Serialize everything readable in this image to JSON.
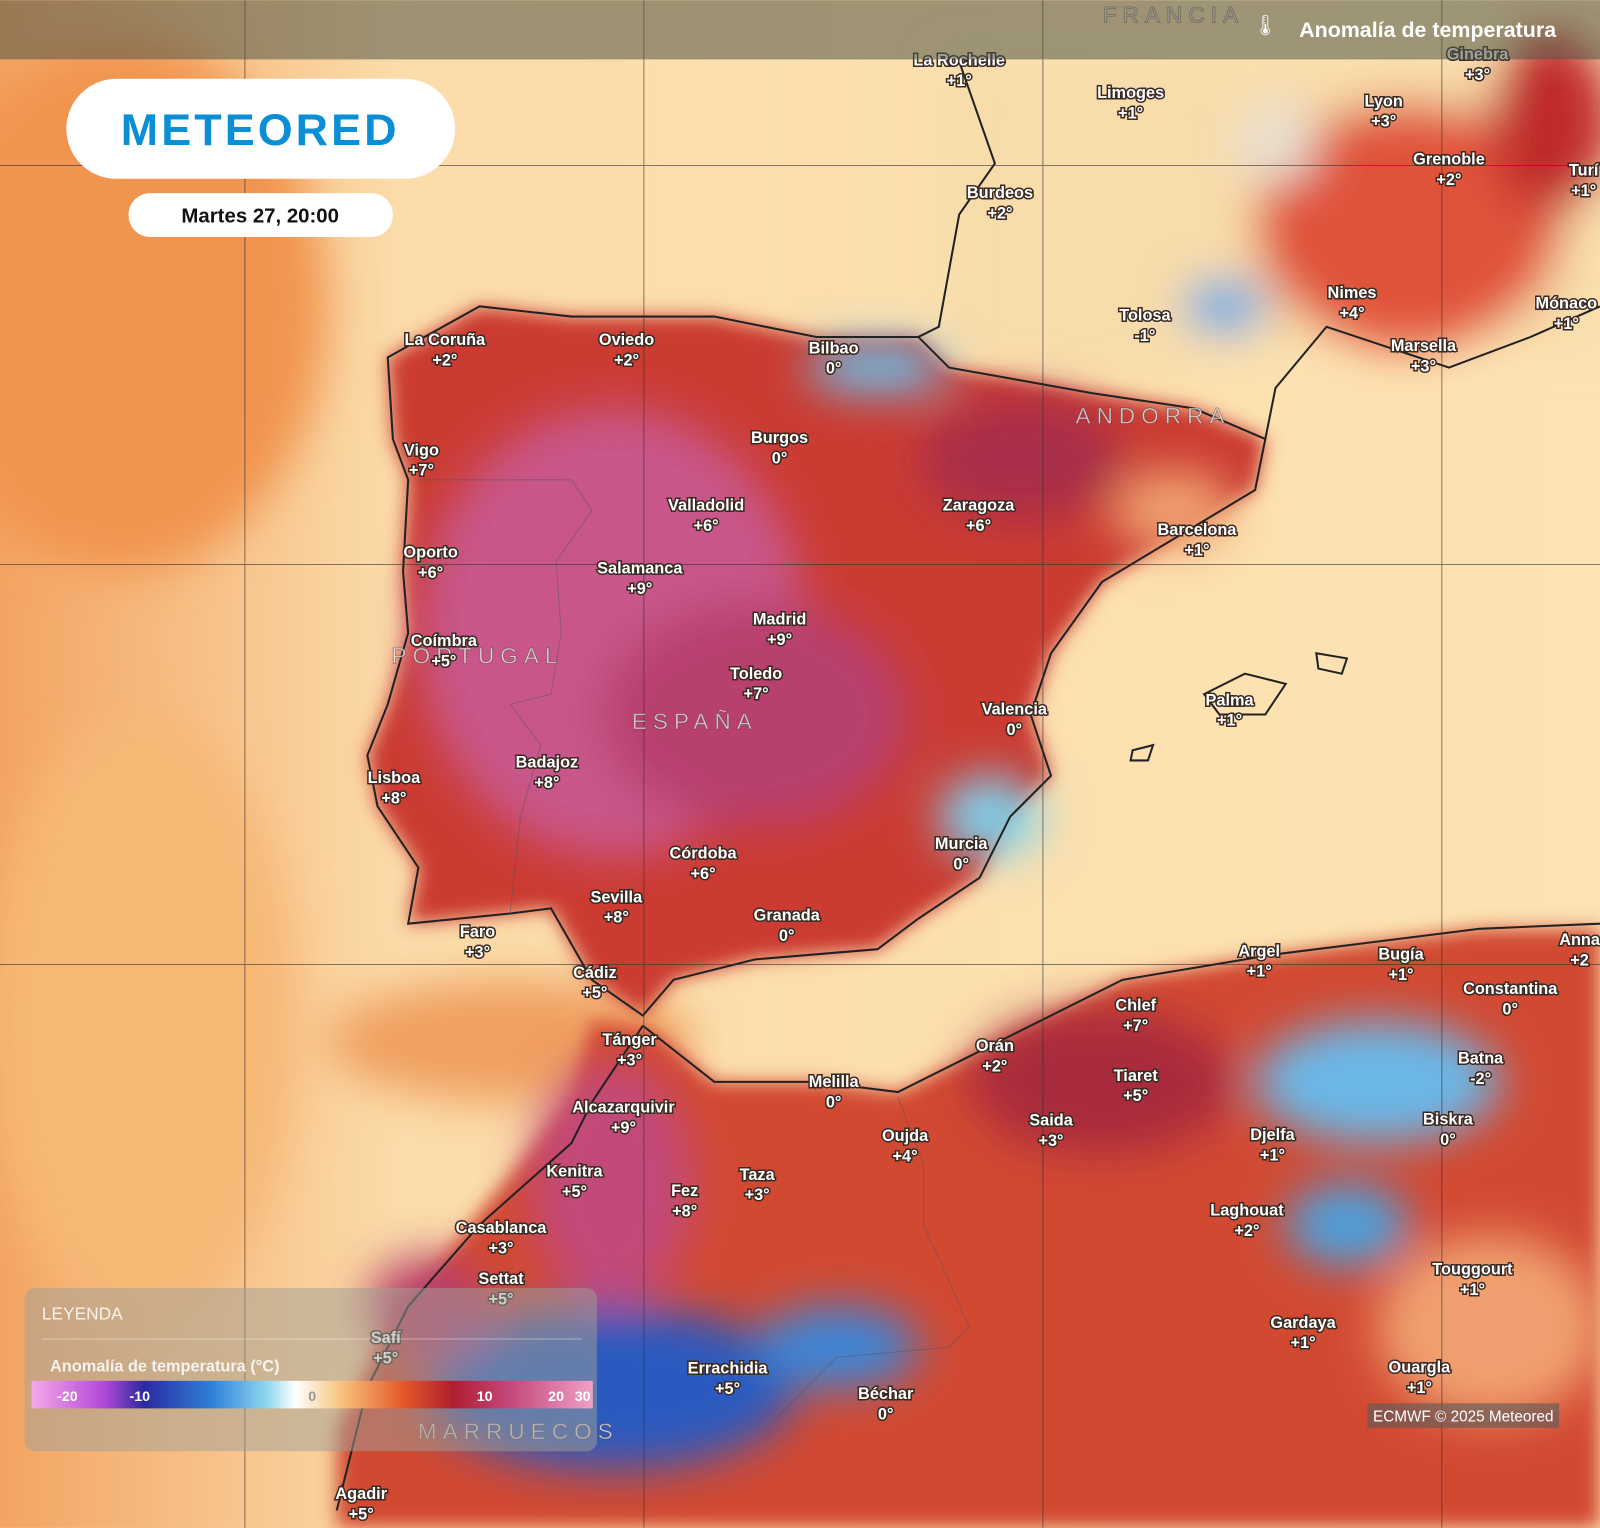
{
  "header": {
    "title": "Anomalía de temperatura",
    "brand": "METEORED",
    "date": "Martes 27, 20:00"
  },
  "countries": [
    "FRANCIA",
    "ANDORRA",
    "PORTUGAL",
    "ESPAÑA",
    "MARRUECOS"
  ],
  "cities": [
    {
      "name": "La Rochelle",
      "anomaly": "+1°"
    },
    {
      "name": "Limoges",
      "anomaly": "+1°"
    },
    {
      "name": "Ginebra",
      "anomaly": "+3°"
    },
    {
      "name": "Lyon",
      "anomaly": "+3°"
    },
    {
      "name": "Grenoble",
      "anomaly": "+2°"
    },
    {
      "name": "Turí",
      "anomaly": "+1°"
    },
    {
      "name": "Burdeos",
      "anomaly": "+2°"
    },
    {
      "name": "Nimes",
      "anomaly": "+4°"
    },
    {
      "name": "Mónaco",
      "anomaly": "+1°"
    },
    {
      "name": "Tolosa",
      "anomaly": "-1°"
    },
    {
      "name": "Marsella",
      "anomaly": "+3°"
    },
    {
      "name": "La Coruña",
      "anomaly": "+2°"
    },
    {
      "name": "Oviedo",
      "anomaly": "+2°"
    },
    {
      "name": "Bilbao",
      "anomaly": "0°"
    },
    {
      "name": "Burgos",
      "anomaly": "0°"
    },
    {
      "name": "Vigo",
      "anomaly": "+7°"
    },
    {
      "name": "Valladolid",
      "anomaly": "+6°"
    },
    {
      "name": "Zaragoza",
      "anomaly": "+6°"
    },
    {
      "name": "Barcelona",
      "anomaly": "+1°"
    },
    {
      "name": "Oporto",
      "anomaly": "+6°"
    },
    {
      "name": "Salamanca",
      "anomaly": "+9°"
    },
    {
      "name": "Madrid",
      "anomaly": "+9°"
    },
    {
      "name": "Coímbra",
      "anomaly": "+5°"
    },
    {
      "name": "Toledo",
      "anomaly": "+7°"
    },
    {
      "name": "Palma",
      "anomaly": "+1°"
    },
    {
      "name": "Valencia",
      "anomaly": "0°"
    },
    {
      "name": "Badajoz",
      "anomaly": "+8°"
    },
    {
      "name": "Lisboa",
      "anomaly": "+8°"
    },
    {
      "name": "Murcia",
      "anomaly": "0°"
    },
    {
      "name": "Córdoba",
      "anomaly": "+6°"
    },
    {
      "name": "Sevilla",
      "anomaly": "+8°"
    },
    {
      "name": "Granada",
      "anomaly": "0°"
    },
    {
      "name": "Faro",
      "anomaly": "+3°"
    },
    {
      "name": "Argel",
      "anomaly": "+1°"
    },
    {
      "name": "Bugía",
      "anomaly": "+1°"
    },
    {
      "name": "Anna",
      "anomaly": "+2"
    },
    {
      "name": "Cádiz",
      "anomaly": "+5°"
    },
    {
      "name": "Constantina",
      "anomaly": "0°"
    },
    {
      "name": "Chlef",
      "anomaly": "+7°"
    },
    {
      "name": "Tánger",
      "anomaly": "+3°"
    },
    {
      "name": "Orán",
      "anomaly": "+2°"
    },
    {
      "name": "Batna",
      "anomaly": "-2°"
    },
    {
      "name": "Tiaret",
      "anomaly": "+5°"
    },
    {
      "name": "Melilla",
      "anomaly": "0°"
    },
    {
      "name": "Alcazarquivir",
      "anomaly": "+9°"
    },
    {
      "name": "Saida",
      "anomaly": "+3°"
    },
    {
      "name": "Biskra",
      "anomaly": "0°"
    },
    {
      "name": "Oujda",
      "anomaly": "+4°"
    },
    {
      "name": "Djelfa",
      "anomaly": "+1°"
    },
    {
      "name": "Kenitra",
      "anomaly": "+5°"
    },
    {
      "name": "Taza",
      "anomaly": "+3°"
    },
    {
      "name": "Fez",
      "anomaly": "+8°"
    },
    {
      "name": "Laghouat",
      "anomaly": "+2°"
    },
    {
      "name": "Casablanca",
      "anomaly": "+3°"
    },
    {
      "name": "Settat",
      "anomaly": "+5°"
    },
    {
      "name": "Touggourt",
      "anomaly": "+1°"
    },
    {
      "name": "Gardaya",
      "anomaly": "+1°"
    },
    {
      "name": "Safí",
      "anomaly": "+5°"
    },
    {
      "name": "Ouargla",
      "anomaly": "+1°"
    },
    {
      "name": "Errachidia",
      "anomaly": "+5°"
    },
    {
      "name": "Béchar",
      "anomaly": "0°"
    },
    {
      "name": "Agadir",
      "anomaly": "+5°"
    }
  ],
  "legend": {
    "title": "LEYENDA",
    "subtitle": "Anomalía de temperatura (°C)",
    "ticks": [
      "-20",
      "-10",
      "0",
      "10",
      "20",
      "30"
    ]
  },
  "credit": "ECMWF © 2025 Meteored"
}
